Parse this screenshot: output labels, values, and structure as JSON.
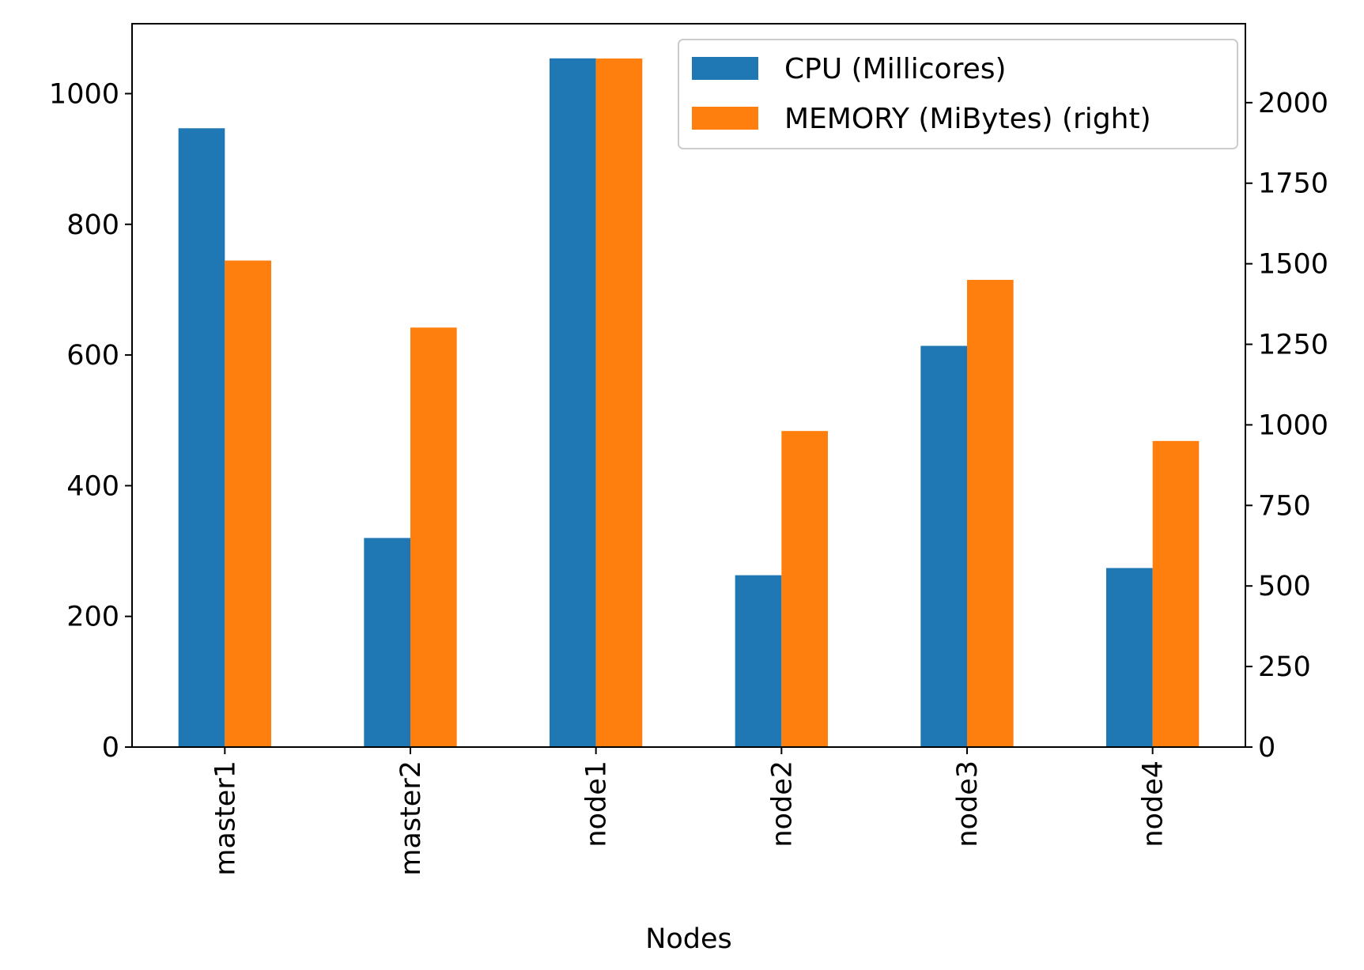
{
  "chart_data": {
    "type": "bar",
    "xlabel": "Nodes",
    "categories": [
      "master1",
      "master2",
      "node1",
      "node2",
      "node3",
      "node4"
    ],
    "series": [
      {
        "name": "CPU (Millicores)",
        "axis": "left",
        "color": "#1f77b4",
        "values": [
          947,
          320,
          1054,
          263,
          614,
          274
        ]
      },
      {
        "name": "MEMORY (MiBytes) (right)",
        "axis": "right",
        "color": "#ff7f0e",
        "values": [
          1510,
          1302,
          2137,
          981,
          1450,
          950
        ]
      }
    ],
    "y_left": {
      "lim": [
        0,
        1107
      ],
      "ticks": [
        0,
        200,
        400,
        600,
        800,
        1000
      ]
    },
    "y_right": {
      "lim": [
        0,
        2245
      ],
      "ticks": [
        0,
        250,
        500,
        750,
        1000,
        1250,
        1500,
        1750,
        2000
      ]
    },
    "legend": {
      "placement": "upper right"
    },
    "grid": false
  }
}
